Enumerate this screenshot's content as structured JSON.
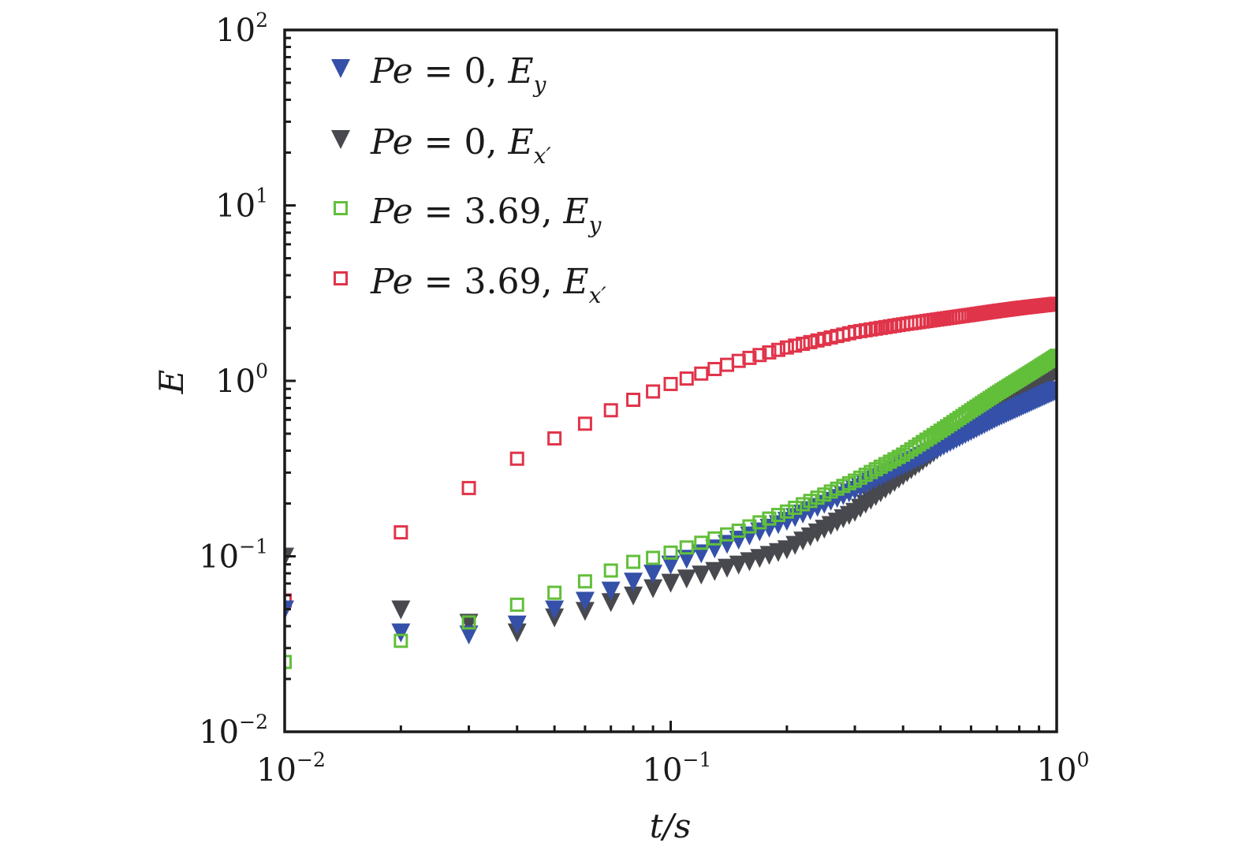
{
  "chart_data": {
    "type": "scatter",
    "title": "",
    "xlabel": "t/s",
    "ylabel": "E",
    "xscale": "log",
    "yscale": "log",
    "xlim": [
      0.01,
      1.0
    ],
    "ylim": [
      0.01,
      100
    ],
    "x_ticks": [
      {
        "base": "10",
        "exp": "−2",
        "value": 0.01
      },
      {
        "base": "10",
        "exp": "−1",
        "value": 0.1
      },
      {
        "base": "10",
        "exp": "0",
        "value": 1
      }
    ],
    "y_ticks": [
      {
        "base": "10",
        "exp": "−2",
        "value": 0.01
      },
      {
        "base": "10",
        "exp": "−1",
        "value": 0.1
      },
      {
        "base": "10",
        "exp": "0",
        "value": 1
      },
      {
        "base": "10",
        "exp": "1",
        "value": 10
      },
      {
        "base": "10",
        "exp": "2",
        "value": 100
      }
    ],
    "grid": false,
    "legend_position": "top-left",
    "x": {
      "start": 0.01,
      "step": 0.01,
      "count": 100
    },
    "series": [
      {
        "name": "Pe=0, E_y",
        "label_main": "Pe = 0, E",
        "label_sub": "y",
        "marker": "triangle-down-filled",
        "color": "#3450a8",
        "anchors_t": [
          0.01,
          0.02,
          0.03,
          0.04,
          0.05,
          0.06,
          0.07,
          0.08,
          0.09,
          0.1,
          0.15,
          0.2,
          0.3,
          0.4,
          0.5,
          0.6,
          0.7,
          0.8,
          0.9,
          1.0
        ],
        "anchors_E": [
          0.05,
          0.037,
          0.036,
          0.041,
          0.05,
          0.056,
          0.064,
          0.072,
          0.08,
          0.09,
          0.125,
          0.16,
          0.24,
          0.33,
          0.42,
          0.52,
          0.62,
          0.71,
          0.8,
          0.89
        ]
      },
      {
        "name": "Pe=0, E_x'",
        "label_main": "Pe = 0, E",
        "label_sub": "x′",
        "marker": "triangle-down-filled",
        "color": "#48494e",
        "anchors_t": [
          0.01,
          0.02,
          0.03,
          0.04,
          0.05,
          0.06,
          0.07,
          0.08,
          0.09,
          0.1,
          0.15,
          0.2,
          0.3,
          0.4,
          0.5,
          0.6,
          0.7,
          0.8,
          0.9,
          1.0
        ],
        "anchors_E": [
          0.1,
          0.05,
          0.042,
          0.037,
          0.045,
          0.049,
          0.055,
          0.06,
          0.066,
          0.071,
          0.09,
          0.11,
          0.18,
          0.29,
          0.42,
          0.56,
          0.71,
          0.86,
          1.01,
          1.16
        ]
      },
      {
        "name": "Pe=3.69, E_y",
        "label_main": "Pe = 3.69, E",
        "label_sub": "y",
        "marker": "square-open",
        "color": "#62bf3a",
        "anchors_t": [
          0.01,
          0.02,
          0.03,
          0.04,
          0.05,
          0.06,
          0.07,
          0.08,
          0.09,
          0.1,
          0.15,
          0.2,
          0.3,
          0.4,
          0.5,
          0.6,
          0.7,
          0.8,
          0.9,
          1.0
        ],
        "anchors_E": [
          0.025,
          0.033,
          0.042,
          0.053,
          0.062,
          0.072,
          0.083,
          0.093,
          0.098,
          0.105,
          0.14,
          0.18,
          0.27,
          0.38,
          0.52,
          0.68,
          0.85,
          1.02,
          1.2,
          1.39
        ]
      },
      {
        "name": "Pe=3.69, E_x'",
        "label_main": "Pe = 3.69, E",
        "label_sub": "x′",
        "marker": "square-open",
        "color": "#e0344a",
        "anchors_t": [
          0.01,
          0.02,
          0.03,
          0.04,
          0.05,
          0.06,
          0.07,
          0.08,
          0.09,
          0.1,
          0.15,
          0.2,
          0.3,
          0.4,
          0.5,
          0.6,
          0.7,
          0.8,
          0.9,
          1.0
        ],
        "anchors_E": [
          0.056,
          0.137,
          0.245,
          0.36,
          0.47,
          0.57,
          0.68,
          0.78,
          0.87,
          0.96,
          1.3,
          1.55,
          1.9,
          2.1,
          2.25,
          2.38,
          2.5,
          2.6,
          2.68,
          2.75
        ]
      }
    ]
  }
}
